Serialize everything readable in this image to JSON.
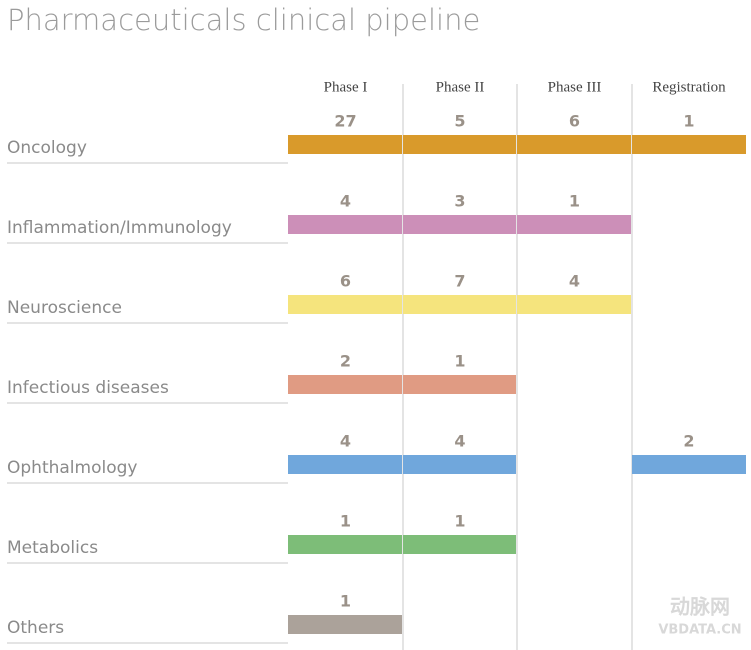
{
  "title": "Pharmaceuticals clinical pipeline",
  "phases": [
    "Phase I",
    "Phase II",
    "Phase III",
    "Registration"
  ],
  "rows": [
    {
      "name": "Oncology",
      "color": "#d99a2b",
      "counts": [
        27,
        5,
        6,
        1
      ]
    },
    {
      "name": "Inflammation/Immunology",
      "color": "#cc8fb8",
      "counts": [
        4,
        3,
        1,
        null
      ]
    },
    {
      "name": "Neuroscience",
      "color": "#f5e47d",
      "counts": [
        6,
        7,
        4,
        null
      ]
    },
    {
      "name": "Infectious diseases",
      "color": "#e09b83",
      "counts": [
        2,
        1,
        null,
        null
      ]
    },
    {
      "name": "Ophthalmology",
      "color": "#70a7dc",
      "counts": [
        4,
        4,
        null,
        2
      ]
    },
    {
      "name": "Metabolics",
      "color": "#7dbd78",
      "counts": [
        1,
        1,
        null,
        null
      ]
    },
    {
      "name": "Others",
      "color": "#aba29a",
      "counts": [
        1,
        null,
        null,
        null
      ]
    }
  ],
  "watermark": {
    "brand": "动脉网",
    "site": "VBDATA.CN"
  }
}
